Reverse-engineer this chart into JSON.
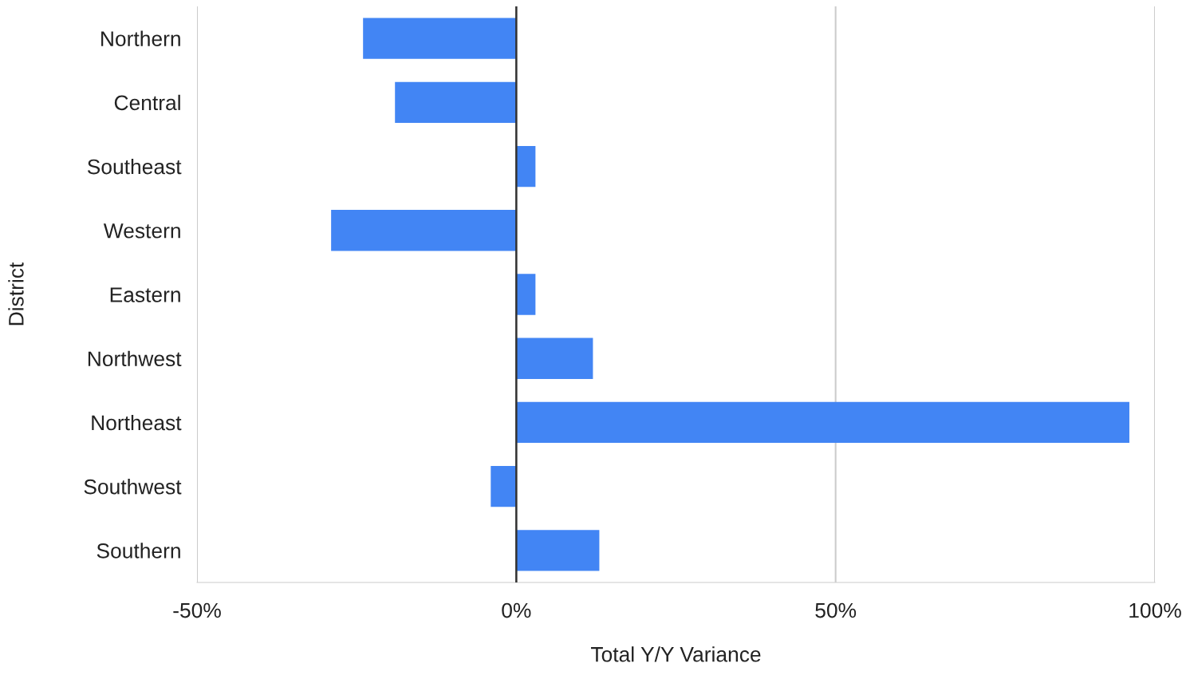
{
  "chart_data": {
    "type": "bar",
    "orientation": "horizontal",
    "xlabel": "Total Y/Y Variance",
    "ylabel": "District",
    "categories": [
      "Northern",
      "Central",
      "Southeast",
      "Western",
      "Eastern",
      "Northwest",
      "Northeast",
      "Southwest",
      "Southern"
    ],
    "values": [
      -24,
      -19,
      3,
      -29,
      3,
      12,
      96,
      -4,
      13
    ],
    "color": "#4285f4",
    "xlim": [
      -50,
      100
    ],
    "xticks": [
      {
        "value": -50,
        "label": "-50%"
      },
      {
        "value": 0,
        "label": "0%"
      },
      {
        "value": 50,
        "label": "50%"
      },
      {
        "value": 100,
        "label": "100%"
      }
    ],
    "ref_lines": [
      {
        "axis": "x",
        "value": 0,
        "color": "#333333"
      }
    ],
    "grid": "x",
    "legend": false
  }
}
